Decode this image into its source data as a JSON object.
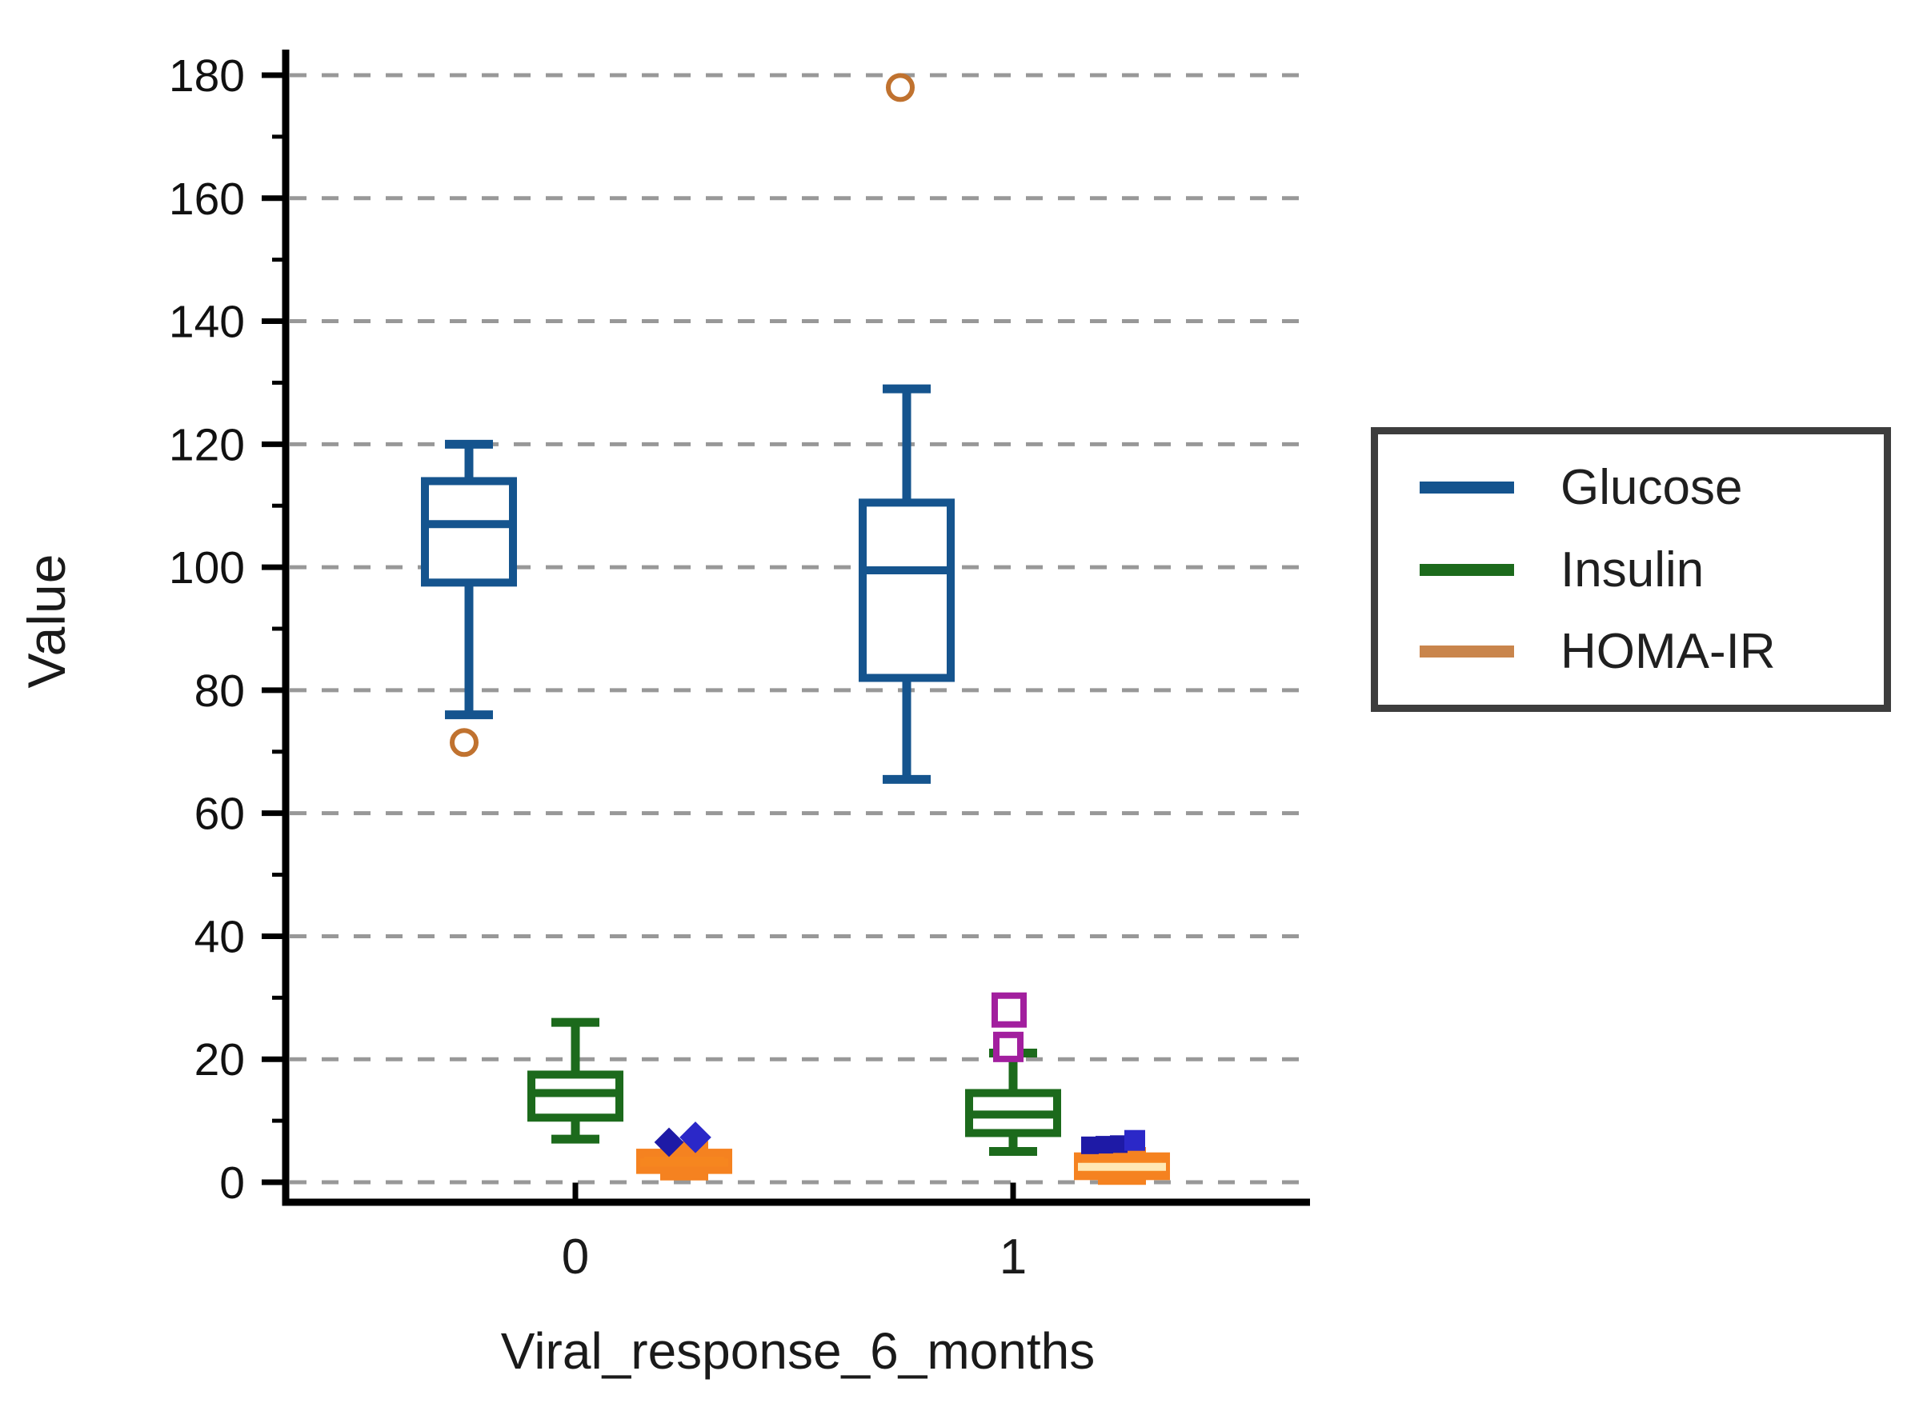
{
  "chart_data": {
    "type": "boxplot",
    "xlabel": "Viral_response_6_months",
    "ylabel": "Value",
    "ylim": [
      0,
      180
    ],
    "y_major_ticks": [
      0,
      20,
      40,
      60,
      80,
      100,
      120,
      140,
      160,
      180
    ],
    "y_minor_tick_step": 10,
    "grid": "horizontal dashed gray lines at every major y tick",
    "grid_color": "#989898",
    "axis_color": "#000000",
    "categories": [
      "0",
      "1"
    ],
    "legend_position": "right of plot, boxed",
    "series": [
      {
        "name": "Glucose",
        "color": "#15548E",
        "boxes": [
          {
            "category": "0",
            "whisker_low": 76,
            "q1": 97.5,
            "median": 107,
            "q3": 114,
            "whisker_high": 120,
            "outliers": [
              {
                "value": 71.5,
                "marker": "circle-open",
                "color": "#C0722F",
                "size": 30,
                "dx": -6
              }
            ]
          },
          {
            "category": "1",
            "whisker_low": 65.5,
            "q1": 82,
            "median": 99.5,
            "q3": 110.5,
            "whisker_high": 129,
            "outliers": [
              {
                "value": 178,
                "marker": "circle-open",
                "color": "#C0722F",
                "size": 30,
                "dx": -8
              }
            ]
          }
        ]
      },
      {
        "name": "Insulin",
        "color": "#1C6A1C",
        "boxes": [
          {
            "category": "0",
            "whisker_low": 7,
            "q1": 10.5,
            "median": 14.5,
            "q3": 17.5,
            "whisker_high": 26,
            "outliers": []
          },
          {
            "category": "1",
            "whisker_low": 5,
            "q1": 8,
            "median": 11,
            "q3": 14.5,
            "whisker_high": 21,
            "outliers": [
              {
                "value": 28,
                "marker": "square-open",
                "color": "#A21F9E",
                "size": 36,
                "dx": -5
              },
              {
                "value": 22,
                "marker": "square-open",
                "color": "#A21F9E",
                "size": 30,
                "dx": -6
              }
            ]
          }
        ]
      },
      {
        "name": "HOMA-IR",
        "color": "#F58220",
        "legend_color": "#C9854C",
        "box_fill": "#F6861F",
        "boxes": [
          {
            "category": "0",
            "whisker_low": 1,
            "q1": 2,
            "median": 3.2,
            "q3": 4.8,
            "whisker_high": 6,
            "median_color": "#F6861F",
            "outliers": [
              {
                "value": 6.5,
                "marker": "diamond-filled",
                "color": "#1E1AA6",
                "size": 26,
                "dx": -19
              },
              {
                "value": 7.3,
                "marker": "diamond-filled",
                "color": "#2B28C8",
                "size": 28,
                "dx": 14
              }
            ]
          },
          {
            "category": "1",
            "whisker_low": 0.3,
            "q1": 1,
            "median": 2.5,
            "q3": 4.2,
            "whisker_high": 5,
            "median_color": "#FFE9B4",
            "outliers": [
              {
                "value": 6.0,
                "marker": "square-filled",
                "color": "#1E1AA6",
                "size": 22,
                "dx": -40
              },
              {
                "value": 6.1,
                "marker": "square-filled",
                "color": "#1E1AA6",
                "size": 22,
                "dx": -22
              },
              {
                "value": 6.2,
                "marker": "square-filled",
                "color": "#1E1AA6",
                "size": 22,
                "dx": -4
              },
              {
                "value": 6.8,
                "marker": "square-filled",
                "color": "#2B28C8",
                "size": 26,
                "dx": 16
              }
            ]
          }
        ]
      }
    ]
  }
}
